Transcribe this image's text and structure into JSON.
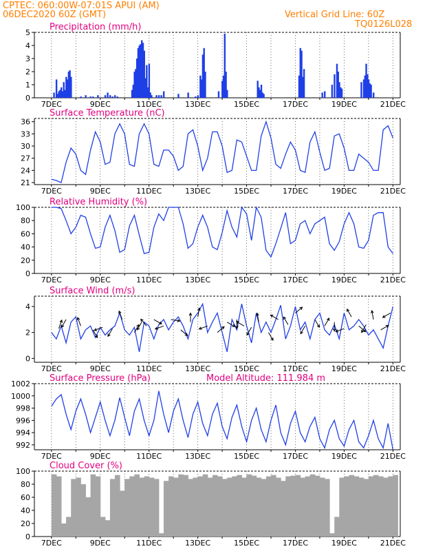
{
  "header": {
    "line1": "CPTEC:   060:00W-07:01S   APUI (AM)",
    "line2": "06DEC2020 60Z (GMT)",
    "grid_note": "Vertical Grid Line: 60Z",
    "code": "TQ0126L028"
  },
  "colors": {
    "header": "#ff7f00",
    "title": "#e0007f",
    "line": "#1f3fe6",
    "cloud": "#a6a6a6",
    "arrow": "#000000"
  },
  "x_ticks": [
    "7DEC",
    "9DEC",
    "11DEC",
    "13DEC",
    "15DEC",
    "17DEC",
    "19DEC",
    "21DEC"
  ],
  "chart_data": [
    {
      "id": "precip",
      "type": "bar",
      "title": "Precipitation (mm/h)",
      "ylim": [
        0,
        5
      ],
      "yticks": [
        0,
        1,
        2,
        3,
        4,
        5
      ],
      "x": [
        0.1,
        0.2,
        0.25,
        0.3,
        0.35,
        0.4,
        0.45,
        0.5,
        0.55,
        0.6,
        0.65,
        0.7,
        0.75,
        0.8,
        1.2,
        1.4,
        1.6,
        1.7,
        1.9,
        2.2,
        2.3,
        2.4,
        2.5,
        2.6,
        2.7,
        3.3,
        3.35,
        3.4,
        3.45,
        3.5,
        3.55,
        3.6,
        3.65,
        3.7,
        3.75,
        3.8,
        3.85,
        3.9,
        3.95,
        4.0,
        4.05,
        4.1,
        4.3,
        4.4,
        4.5,
        4.6,
        5.2,
        5.6,
        5.9,
        6.0,
        6.1,
        6.15,
        6.2,
        6.25,
        6.3,
        6.85,
        7.0,
        7.05,
        7.1,
        7.15,
        7.2,
        8.45,
        8.5,
        8.55,
        8.6,
        8.65,
        8.7,
        10.15,
        10.2,
        10.25,
        10.3,
        10.35,
        11.1,
        11.2,
        11.5,
        11.6,
        11.7,
        11.75,
        11.8,
        11.85,
        11.9,
        12.7,
        12.8,
        12.85,
        12.9,
        12.95,
        13.0,
        13.05,
        13.1,
        13.2
      ],
      "values": [
        0.4,
        1.4,
        0.3,
        0.5,
        0.6,
        0.8,
        0.5,
        1.2,
        0.6,
        1.6,
        1.4,
        2.0,
        2.1,
        1.6,
        0.1,
        0.2,
        0.1,
        0.1,
        0.2,
        0.2,
        0.4,
        0.2,
        0.1,
        0.2,
        0.1,
        0.6,
        1.0,
        2.0,
        2.2,
        3.0,
        3.8,
        4.0,
        4.1,
        4.4,
        4.2,
        3.6,
        1.5,
        2.5,
        0.8,
        2.6,
        0.4,
        0.2,
        0.2,
        0.2,
        0.2,
        0.5,
        0.3,
        0.4,
        0.1,
        0.2,
        1.7,
        1.4,
        3.3,
        3.8,
        2.0,
        0.5,
        1.3,
        1.7,
        4.9,
        2.0,
        0.6,
        1.3,
        0.8,
        0.6,
        1.0,
        0.4,
        0.3,
        1.7,
        3.8,
        3.6,
        1.6,
        2.2,
        0.4,
        0.5,
        1.0,
        1.8,
        2.6,
        2.0,
        1.2,
        0.8,
        0.7,
        1.2,
        1.4,
        1.7,
        2.6,
        1.8,
        1.4,
        1.1,
        1.0,
        0.4
      ]
    },
    {
      "id": "temp",
      "type": "line",
      "title": "Surface Temperature (nC)",
      "ylim": [
        20.5,
        36.8
      ],
      "yticks": [
        21,
        24,
        27,
        30,
        33,
        36
      ],
      "x": [
        0,
        0.2,
        0.4,
        0.6,
        0.8,
        1.0,
        1.2,
        1.4,
        1.6,
        1.8,
        2.0,
        2.2,
        2.4,
        2.6,
        2.8,
        3.0,
        3.2,
        3.4,
        3.6,
        3.8,
        4.0,
        4.2,
        4.4,
        4.6,
        4.8,
        5.0,
        5.2,
        5.4,
        5.6,
        5.8,
        6.0,
        6.2,
        6.4,
        6.6,
        6.8,
        7.0,
        7.2,
        7.4,
        7.6,
        7.8,
        8.0,
        8.2,
        8.4,
        8.6,
        8.8,
        9.0,
        9.2,
        9.4,
        9.6,
        9.8,
        10.0,
        10.2,
        10.4,
        10.6,
        10.8,
        11.0,
        11.2,
        11.4,
        11.6,
        11.8,
        12.0,
        12.2,
        12.4,
        12.6,
        12.8,
        13.0,
        13.2,
        13.4,
        13.6,
        13.8,
        14.0
      ],
      "values": [
        21.8,
        21.5,
        21.0,
        26.0,
        29.5,
        28.0,
        24.0,
        23.0,
        29.0,
        33.5,
        31.0,
        25.5,
        26.0,
        33.0,
        35.5,
        33.0,
        25.5,
        25.0,
        33.0,
        35.5,
        33.0,
        25.5,
        25.0,
        29.0,
        29.0,
        27.5,
        24.0,
        25.0,
        33.0,
        34.0,
        30.0,
        24.0,
        27.0,
        33.5,
        33.5,
        30.0,
        23.5,
        24.0,
        31.5,
        31.0,
        27.5,
        24.0,
        24.0,
        32.5,
        36.0,
        32.0,
        25.5,
        24.5,
        28.0,
        31.0,
        29.0,
        24.0,
        23.5,
        31.0,
        33.5,
        28.5,
        24.0,
        24.5,
        32.5,
        33.0,
        29.5,
        24.0,
        24.0,
        28.0,
        27.0,
        26.0,
        24.0,
        24.0,
        34.0,
        35.0,
        32.0
      ]
    },
    {
      "id": "rh",
      "type": "line",
      "title": "Relative Humidity (%)",
      "ylim": [
        0,
        100
      ],
      "yticks": [
        0,
        20,
        40,
        60,
        80,
        100
      ],
      "x": [
        0,
        0.2,
        0.4,
        0.6,
        0.8,
        1.0,
        1.2,
        1.4,
        1.6,
        1.8,
        2.0,
        2.2,
        2.4,
        2.6,
        2.8,
        3.0,
        3.2,
        3.4,
        3.6,
        3.8,
        4.0,
        4.2,
        4.4,
        4.6,
        4.8,
        5.0,
        5.2,
        5.4,
        5.6,
        5.8,
        6.0,
        6.2,
        6.4,
        6.6,
        6.8,
        7.0,
        7.2,
        7.4,
        7.6,
        7.8,
        8.0,
        8.2,
        8.4,
        8.6,
        8.8,
        9.0,
        9.2,
        9.4,
        9.6,
        9.8,
        10.0,
        10.2,
        10.4,
        10.6,
        10.8,
        11.0,
        11.2,
        11.4,
        11.6,
        11.8,
        12.0,
        12.2,
        12.4,
        12.6,
        12.8,
        13.0,
        13.2,
        13.4,
        13.6,
        13.8,
        14.0
      ],
      "values": [
        100,
        100,
        98,
        80,
        60,
        70,
        88,
        85,
        60,
        38,
        40,
        70,
        88,
        65,
        32,
        36,
        72,
        88,
        58,
        30,
        32,
        70,
        90,
        80,
        100,
        100,
        100,
        75,
        38,
        45,
        70,
        88,
        70,
        40,
        36,
        62,
        95,
        70,
        55,
        100,
        90,
        50,
        100,
        85,
        35,
        25,
        45,
        68,
        92,
        45,
        50,
        75,
        80,
        60,
        75,
        80,
        85,
        45,
        35,
        48,
        75,
        92,
        75,
        40,
        38,
        50,
        88,
        92,
        92,
        40,
        30
      ]
    },
    {
      "id": "wind",
      "type": "line",
      "title": "Surface Wind (m/s)",
      "ylim": [
        -0.3,
        4.8
      ],
      "yticks": [
        0,
        2,
        4
      ],
      "x": [
        0,
        0.2,
        0.4,
        0.6,
        0.8,
        1.0,
        1.2,
        1.4,
        1.6,
        1.8,
        2.0,
        2.2,
        2.4,
        2.6,
        2.8,
        3.0,
        3.2,
        3.4,
        3.6,
        3.8,
        4.0,
        4.2,
        4.4,
        4.6,
        4.8,
        5.0,
        5.2,
        5.4,
        5.6,
        5.8,
        6.0,
        6.2,
        6.4,
        6.6,
        6.8,
        7.0,
        7.2,
        7.4,
        7.6,
        7.8,
        8.0,
        8.2,
        8.4,
        8.6,
        8.8,
        9.0,
        9.2,
        9.4,
        9.6,
        9.8,
        10.0,
        10.2,
        10.4,
        10.6,
        10.8,
        11.0,
        11.2,
        11.4,
        11.6,
        11.8,
        12.0,
        12.2,
        12.4,
        12.6,
        12.8,
        13.0,
        13.2,
        13.4,
        13.6,
        13.8,
        14.0
      ],
      "values": [
        2.0,
        1.5,
        2.5,
        1.2,
        2.8,
        3.2,
        1.5,
        2.2,
        2.5,
        1.6,
        2.4,
        1.8,
        2.2,
        2.5,
        3.5,
        2.2,
        1.8,
        2.4,
        0.5,
        2.8,
        2.5,
        1.5,
        2.6,
        3.0,
        2.2,
        2.8,
        3.2,
        2.5,
        1.5,
        3.0,
        3.5,
        4.2,
        2.0,
        2.8,
        3.5,
        2.0,
        0.5,
        3.0,
        2.2,
        4.2,
        2.5,
        1.2,
        3.5,
        2.0,
        2.8,
        2.0,
        3.0,
        4.1,
        1.5,
        2.5,
        4.0,
        2.2,
        2.8,
        1.5,
        3.0,
        3.5,
        2.2,
        1.8,
        2.6,
        1.5,
        3.5,
        2.2,
        2.5,
        3.0,
        2.5,
        1.8,
        2.2,
        1.5,
        0.8,
        2.5,
        4.0
      ]
    },
    {
      "id": "press",
      "type": "line",
      "title": "Surface Pressure (hPa)",
      "note": "Model Altitude: 111.984 m",
      "ylim": [
        991.2,
        1002
      ],
      "yticks": [
        992,
        994,
        996,
        998,
        1000,
        1002
      ],
      "x": [
        0,
        0.2,
        0.4,
        0.6,
        0.8,
        1.0,
        1.2,
        1.4,
        1.6,
        1.8,
        2.0,
        2.2,
        2.4,
        2.6,
        2.8,
        3.0,
        3.2,
        3.4,
        3.6,
        3.8,
        4.0,
        4.2,
        4.4,
        4.6,
        4.8,
        5.0,
        5.2,
        5.4,
        5.6,
        5.8,
        6.0,
        6.2,
        6.4,
        6.6,
        6.8,
        7.0,
        7.2,
        7.4,
        7.6,
        7.8,
        8.0,
        8.2,
        8.4,
        8.6,
        8.8,
        9.0,
        9.2,
        9.4,
        9.6,
        9.8,
        10.0,
        10.2,
        10.4,
        10.6,
        10.8,
        11.0,
        11.2,
        11.4,
        11.6,
        11.8,
        12.0,
        12.2,
        12.4,
        12.6,
        12.8,
        13.0,
        13.2,
        13.4,
        13.6,
        13.8,
        14.0
      ],
      "values": [
        998.3,
        999.5,
        1000.2,
        997.0,
        994.5,
        997.5,
        999.5,
        997.0,
        994.0,
        996.5,
        999.0,
        996.0,
        993.5,
        996.0,
        999.7,
        996.5,
        993.5,
        997.5,
        999.5,
        996.0,
        993.5,
        996.0,
        1000.8,
        997.0,
        994.0,
        997.5,
        999.5,
        996.0,
        993.2,
        997.0,
        999.0,
        995.5,
        993.5,
        997.0,
        998.8,
        995.0,
        993.0,
        996.5,
        998.5,
        995.0,
        992.5,
        996.0,
        998.0,
        994.5,
        992.5,
        996.0,
        998.5,
        994.0,
        992.0,
        995.5,
        997.5,
        994.0,
        992.5,
        995.0,
        996.5,
        993.0,
        991.5,
        994.5,
        996.0,
        993.0,
        991.8,
        994.5,
        996.0,
        992.5,
        991.5,
        993.5,
        996.0,
        993.0,
        991.5,
        995.5,
        991.2
      ]
    },
    {
      "id": "cloud",
      "type": "bar",
      "title": "Cloud Cover (%)",
      "ylim": [
        0,
        100
      ],
      "yticks": [
        0,
        20,
        40,
        60,
        80,
        100
      ],
      "x": [
        0,
        0.2,
        0.4,
        0.6,
        0.8,
        1.0,
        1.2,
        1.4,
        1.6,
        1.8,
        2.0,
        2.2,
        2.4,
        2.6,
        2.8,
        3.0,
        3.2,
        3.4,
        3.6,
        3.8,
        4.0,
        4.2,
        4.4,
        4.6,
        4.8,
        5.0,
        5.2,
        5.4,
        5.6,
        5.8,
        6.0,
        6.2,
        6.4,
        6.6,
        6.8,
        7.0,
        7.2,
        7.4,
        7.6,
        7.8,
        8.0,
        8.2,
        8.4,
        8.6,
        8.8,
        9.0,
        9.2,
        9.4,
        9.6,
        9.8,
        10.0,
        10.2,
        10.4,
        10.6,
        10.8,
        11.0,
        11.2,
        11.4,
        11.6,
        11.8,
        12.0,
        12.2,
        12.4,
        12.6,
        12.8,
        13.0,
        13.2,
        13.4,
        13.6,
        13.8,
        14.0
      ],
      "values": [
        95,
        92,
        20,
        30,
        88,
        90,
        80,
        60,
        95,
        92,
        30,
        25,
        88,
        94,
        70,
        88,
        92,
        95,
        90,
        92,
        90,
        88,
        5,
        85,
        92,
        90,
        95,
        94,
        88,
        90,
        92,
        95,
        90,
        94,
        92,
        88,
        90,
        92,
        94,
        90,
        95,
        93,
        90,
        88,
        92,
        94,
        90,
        85,
        92,
        93,
        94,
        90,
        92,
        95,
        93,
        90,
        88,
        5,
        30,
        90,
        92,
        94,
        92,
        90,
        88,
        92,
        94,
        92,
        90,
        92,
        94
      ]
    }
  ],
  "wind_arrows": {
    "x": [
      0.3,
      0.6,
      1.2,
      1.7,
      2.1,
      2.5,
      2.9,
      3.4,
      3.7,
      3.9,
      4.2,
      4.6,
      4.9,
      5.3,
      5.7,
      6.0,
      6.4,
      6.8,
      7.2,
      7.6,
      7.9,
      8.2,
      8.5,
      8.9,
      9.3,
      9.7,
      10.0,
      10.4,
      10.8,
      11.2,
      11.6,
      12.0,
      12.3,
      12.6,
      12.9,
      13.2,
      13.5,
      13.9
    ],
    "speed": [
      2.3,
      3.0,
      2.5,
      2.2,
      2.4,
      2.3,
      3.0,
      2.0,
      2.8,
      2.5,
      3.0,
      2.5,
      3.0,
      2.2,
      2.8,
      3.2,
      2.5,
      2.0,
      2.8,
      3.0,
      2.5,
      2.4,
      2.8,
      2.0,
      3.0,
      2.6,
      3.5,
      2.5,
      3.0,
      2.5,
      2.8,
      2.3,
      3.2,
      2.5,
      2.6,
      3.0,
      2.2,
      3.5
    ],
    "dir_deg": [
      70,
      240,
      110,
      300,
      200,
      240,
      110,
      60,
      240,
      130,
      330,
      200,
      350,
      320,
      90,
      80,
      200,
      40,
      330,
      270,
      150,
      240,
      100,
      300,
      150,
      120,
      40,
      240,
      300,
      60,
      270,
      200,
      120,
      320,
      240,
      100,
      30,
      210
    ]
  }
}
